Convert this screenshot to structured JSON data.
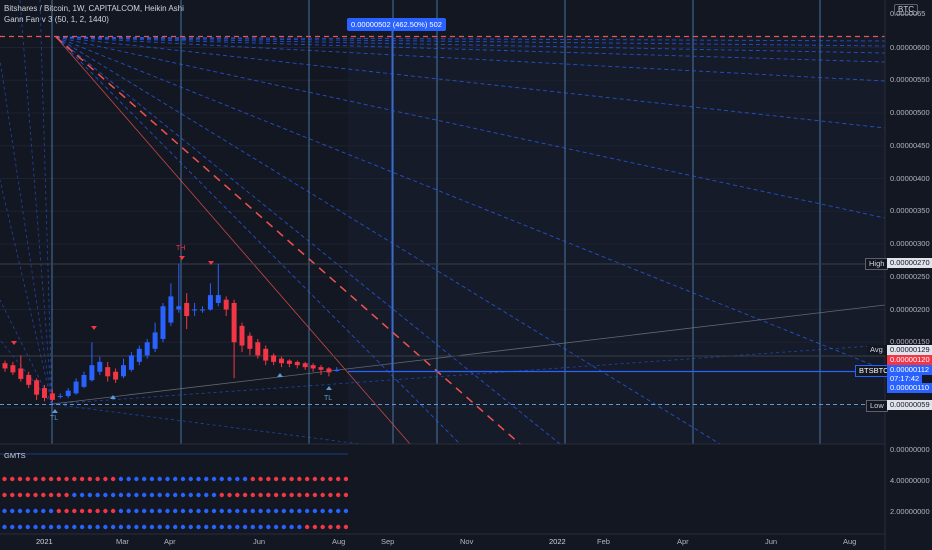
{
  "header": {
    "line1": "Bitshares / Bitcoin, 1W, CAPITALCOM, Heikin Ashi",
    "line2": "Gann Fan v 3 (50, 1, 2, 1440)"
  },
  "currency": "BTC",
  "measure_label": "0.00000502 (462.50%) 502",
  "price_axis": [
    "0.00000600",
    "0.00000550",
    "0.00000500",
    "0.00000450",
    "0.00000400",
    "0.00000350",
    "0.00000300",
    "0.00000250",
    "0.00000200",
    "0.00000150",
    "0.00000050"
  ],
  "top_tick": "0.0000065",
  "tags": {
    "high_label": "High",
    "high_value": "0.00000270",
    "avg_label": "Avg",
    "avg_value": "0.00000129",
    "red_value": "0.00000120",
    "symbol": "BTSBTC",
    "last_value": "0.00000112",
    "countdown": "07:17:42",
    "price_110": "0.00000110",
    "low_label": "Low",
    "low_value": "0.00000059"
  },
  "indicator": {
    "title": "GMTS",
    "axis": [
      "0.00000000",
      "4.00000000",
      "2.00000000"
    ]
  },
  "time_axis": [
    "2021",
    "Mar",
    "Apr",
    "Jun",
    "Aug",
    "Sep",
    "Nov",
    "2022",
    "Feb",
    "Apr",
    "Jun",
    "Aug"
  ],
  "markers": {
    "top_high": "TH",
    "top_low1": "TL",
    "top_low2": "TL"
  },
  "colors": {
    "bg": "#131722",
    "up": "#2962ff",
    "down": "#f23645",
    "fan": "#2962ff",
    "vline": "#5b9bd5"
  },
  "chart_data": {
    "type": "candlestick",
    "style": "Heikin Ashi",
    "timeframe": "1W",
    "ylim": [
      5e-07,
      6.5e-06
    ],
    "series": [
      {
        "o": 1.18,
        "c": 1.1,
        "h": 1.22,
        "l": 1.05
      },
      {
        "o": 1.15,
        "c": 1.04,
        "h": 1.2,
        "l": 1.0
      },
      {
        "o": 1.1,
        "c": 0.94,
        "h": 1.3,
        "l": 0.9
      },
      {
        "o": 1.0,
        "c": 0.85,
        "h": 1.05,
        "l": 0.8
      },
      {
        "o": 0.92,
        "c": 0.7,
        "h": 0.95,
        "l": 0.62
      },
      {
        "o": 0.8,
        "c": 0.65,
        "h": 0.85,
        "l": 0.6
      },
      {
        "o": 0.72,
        "c": 0.62,
        "h": 0.78,
        "l": 0.59
      },
      {
        "o": 0.68,
        "c": 0.68,
        "h": 0.72,
        "l": 0.64
      },
      {
        "o": 0.68,
        "c": 0.76,
        "h": 0.8,
        "l": 0.65
      },
      {
        "o": 0.72,
        "c": 0.9,
        "h": 0.95,
        "l": 0.7
      },
      {
        "o": 0.82,
        "c": 1.0,
        "h": 1.05,
        "l": 0.8
      },
      {
        "o": 0.92,
        "c": 1.15,
        "h": 1.5,
        "l": 0.9
      },
      {
        "o": 1.05,
        "c": 1.2,
        "h": 1.28,
        "l": 1.0
      },
      {
        "o": 1.12,
        "c": 0.98,
        "h": 1.2,
        "l": 0.9
      },
      {
        "o": 1.05,
        "c": 0.93,
        "h": 1.1,
        "l": 0.88
      },
      {
        "o": 0.98,
        "c": 1.15,
        "h": 1.25,
        "l": 0.95
      },
      {
        "o": 1.08,
        "c": 1.3,
        "h": 1.35,
        "l": 1.05
      },
      {
        "o": 1.2,
        "c": 1.4,
        "h": 1.45,
        "l": 1.15
      },
      {
        "o": 1.3,
        "c": 1.5,
        "h": 1.55,
        "l": 1.25
      },
      {
        "o": 1.4,
        "c": 1.65,
        "h": 1.8,
        "l": 1.35
      },
      {
        "o": 1.55,
        "c": 2.05,
        "h": 2.1,
        "l": 1.5
      },
      {
        "o": 1.8,
        "c": 2.2,
        "h": 2.4,
        "l": 1.75
      },
      {
        "o": 2.0,
        "c": 2.05,
        "h": 2.7,
        "l": 1.95
      },
      {
        "o": 2.1,
        "c": 1.9,
        "h": 2.25,
        "l": 1.7
      },
      {
        "o": 2.0,
        "c": 2.0,
        "h": 2.1,
        "l": 1.9
      },
      {
        "o": 2.0,
        "c": 2.0,
        "h": 2.05,
        "l": 1.95
      },
      {
        "o": 2.0,
        "c": 2.22,
        "h": 2.4,
        "l": 1.98
      },
      {
        "o": 2.1,
        "c": 2.22,
        "h": 2.7,
        "l": 2.05
      },
      {
        "o": 2.15,
        "c": 2.0,
        "h": 2.2,
        "l": 1.9
      },
      {
        "o": 2.1,
        "c": 1.5,
        "h": 2.15,
        "l": 0.95
      },
      {
        "o": 1.75,
        "c": 1.45,
        "h": 1.8,
        "l": 1.35
      },
      {
        "o": 1.6,
        "c": 1.4,
        "h": 1.65,
        "l": 1.3
      },
      {
        "o": 1.5,
        "c": 1.3,
        "h": 1.55,
        "l": 1.25
      },
      {
        "o": 1.4,
        "c": 1.22,
        "h": 1.45,
        "l": 1.15
      },
      {
        "o": 1.3,
        "c": 1.2,
        "h": 1.33,
        "l": 1.15
      },
      {
        "o": 1.25,
        "c": 1.18,
        "h": 1.28,
        "l": 1.12
      },
      {
        "o": 1.22,
        "c": 1.17,
        "h": 1.24,
        "l": 1.12
      },
      {
        "o": 1.2,
        "c": 1.15,
        "h": 1.22,
        "l": 1.1
      },
      {
        "o": 1.18,
        "c": 1.12,
        "h": 1.2,
        "l": 1.08
      },
      {
        "o": 1.15,
        "c": 1.1,
        "h": 1.18,
        "l": 1.05
      },
      {
        "o": 1.12,
        "c": 1.08,
        "h": 1.15,
        "l": 1.0
      },
      {
        "o": 1.1,
        "c": 1.04,
        "h": 1.12,
        "l": 0.98
      },
      {
        "o": 1.06,
        "c": 1.08,
        "h": 1.12,
        "l": 1.05
      }
    ],
    "indicator_rows": [
      "RRRRRRRRRRRRRRRBBBBBBBBBBBBBBBBBRRRRRRRRRRRRR",
      "RRRRRRRRRBBBBBBBBBBBBBBBBBBBRRRRRRRRRRRRRRRRR",
      "BBBBBBBRRRRRRRRBBBBBBBBBBBBBBBBBBBBBBBBBBBBBB",
      "BBBBBBBBBBBBBBBBBBBBBBBBBBBBBBBBBBBBBBBRRRRRR"
    ]
  }
}
